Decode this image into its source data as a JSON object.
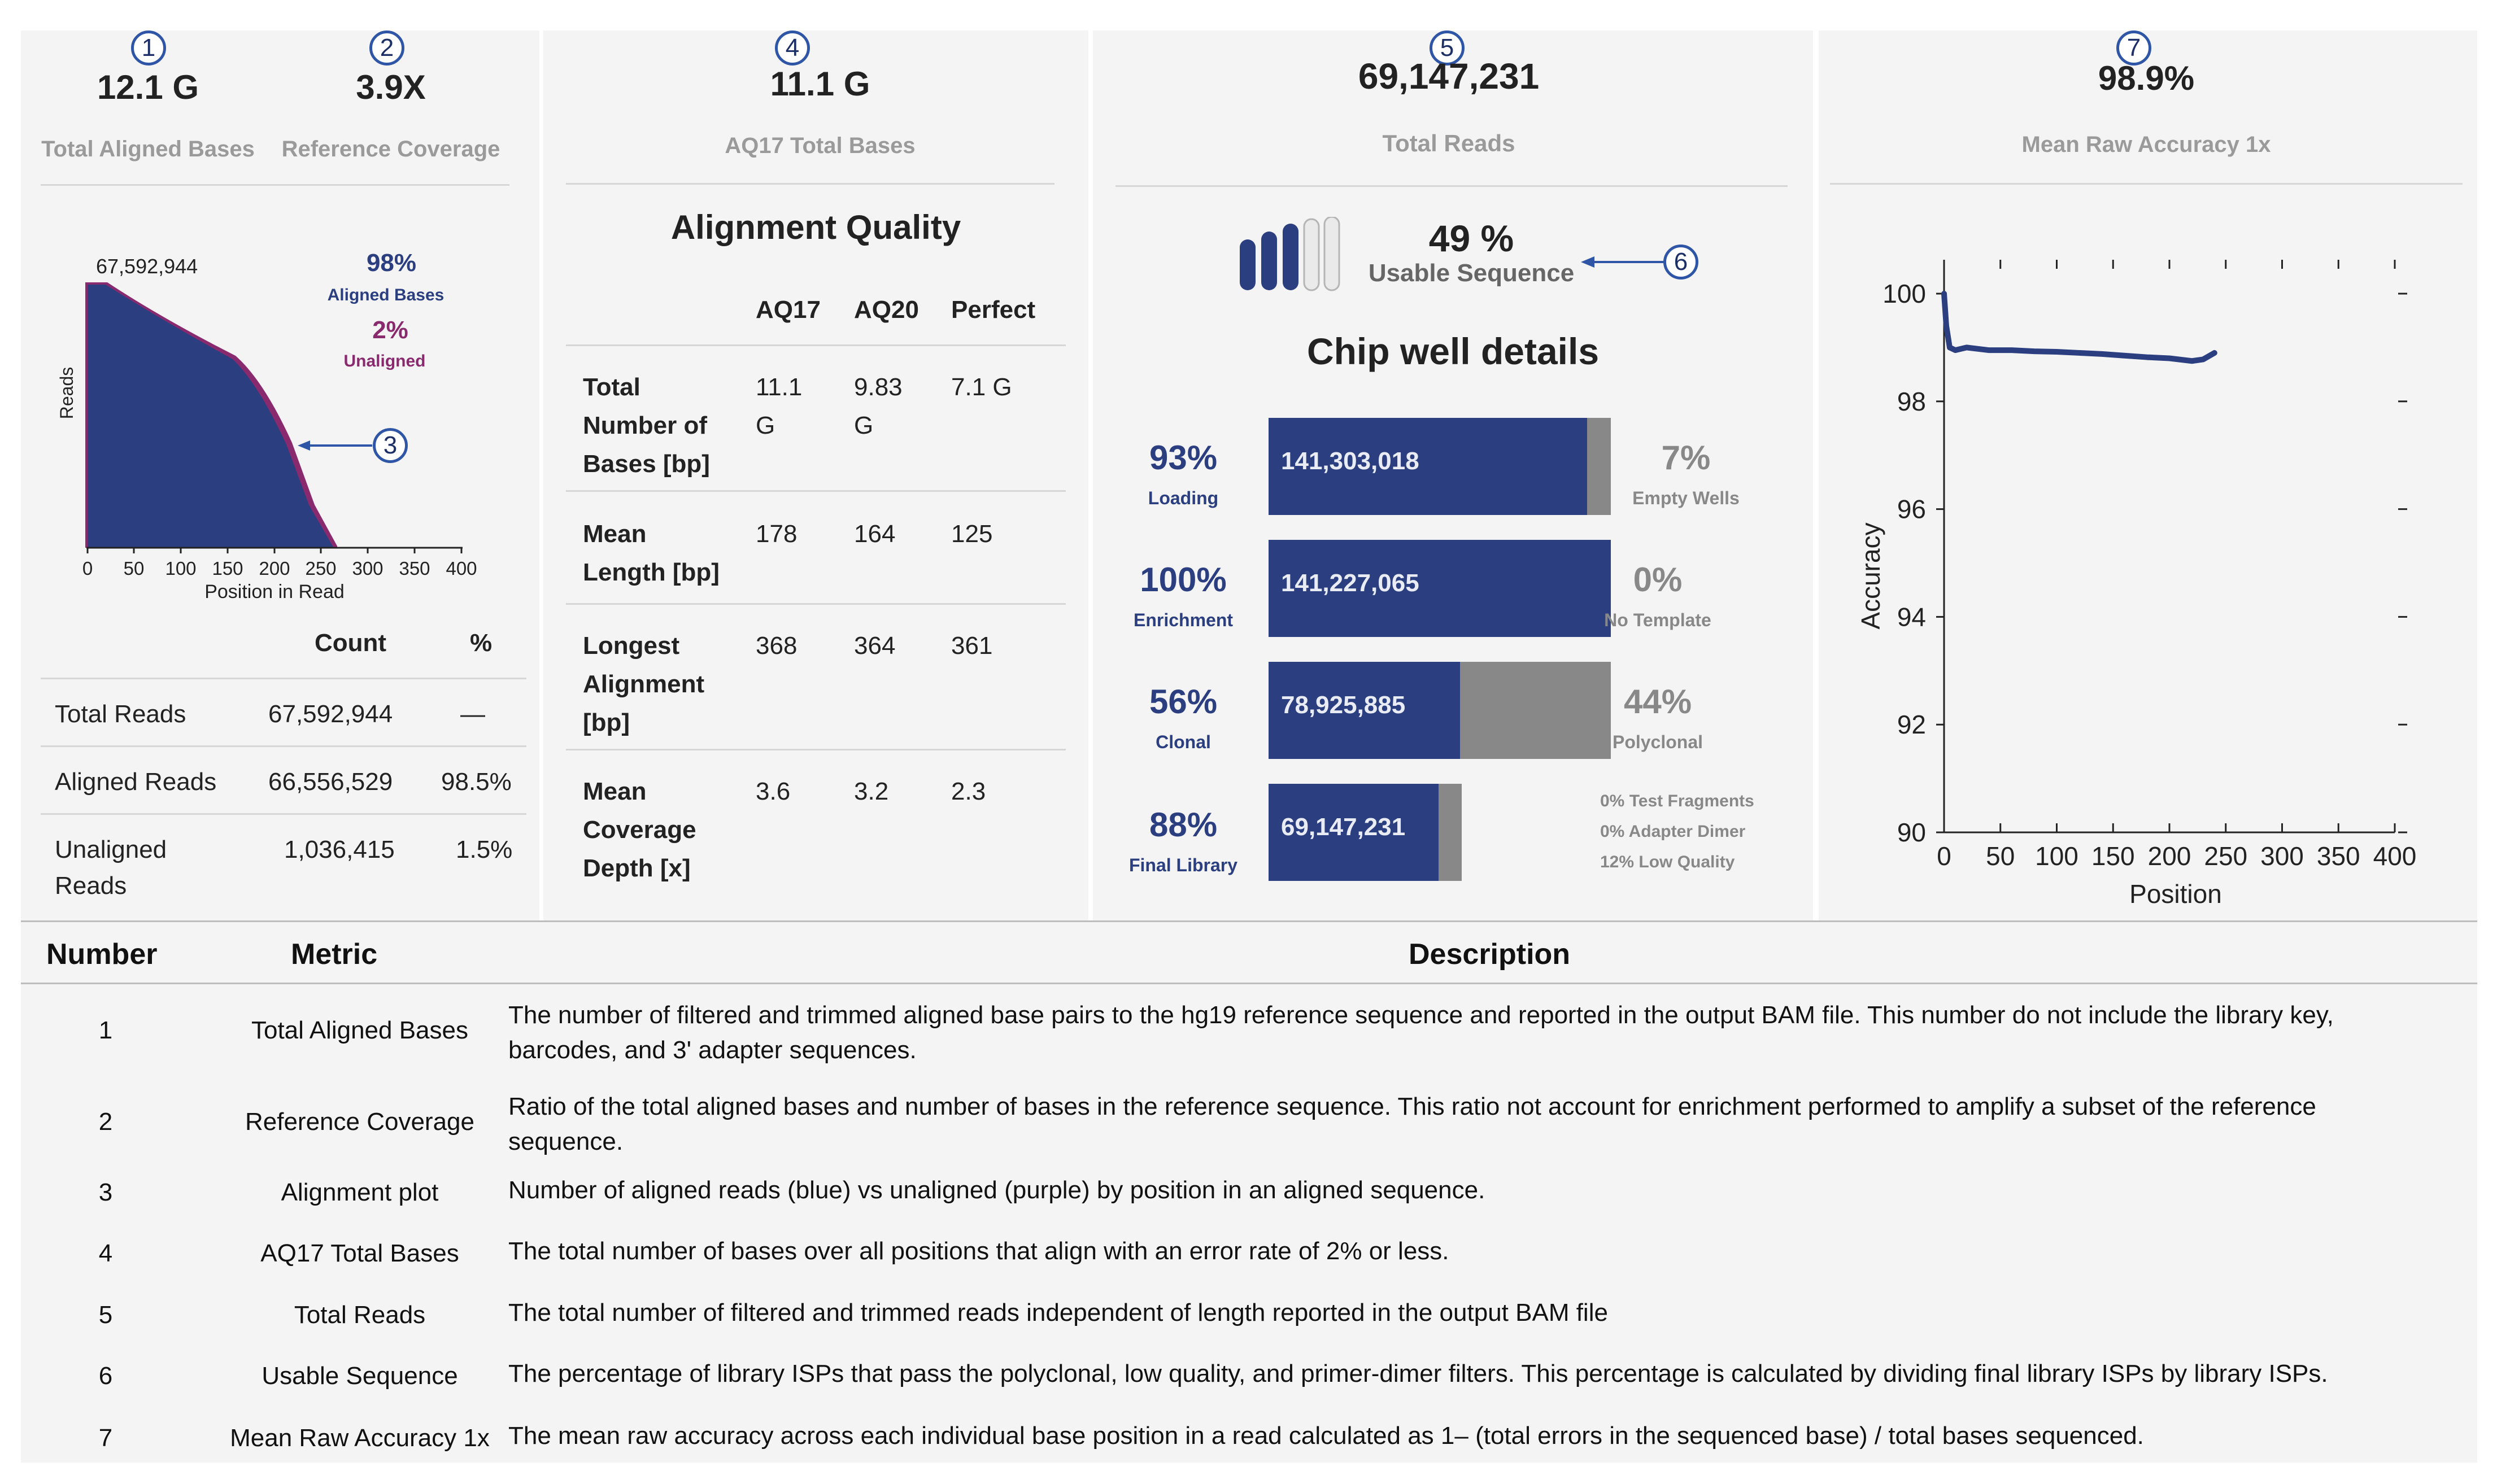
{
  "panel1": {
    "marker1": "1",
    "marker2": "2",
    "marker3": "3",
    "total_aligned_bases": "12.1 G",
    "total_aligned_bases_label": "Total Aligned Bases",
    "reference_coverage": "3.9X",
    "reference_coverage_label": "Reference Coverage",
    "plot": {
      "peak_label": "67,592,944",
      "aligned_pct": "98%",
      "aligned_label": "Aligned Bases",
      "unaligned_pct": "2%",
      "unaligned_label": "Unaligned",
      "ylabel": "Reads",
      "xlabel": "Position in Read",
      "xticks": [
        "0",
        "50",
        "100",
        "150",
        "200",
        "250",
        "300",
        "350",
        "400"
      ]
    },
    "table": {
      "headers": [
        "Count",
        "%"
      ],
      "rows": [
        {
          "label": "Total Reads",
          "count": "67,592,944",
          "pct": "—"
        },
        {
          "label": "Aligned Reads",
          "count": "66,556,529",
          "pct": "98.5%"
        },
        {
          "label_line1": "Unaligned",
          "label_line2": "Reads",
          "count": "1,036,415",
          "pct": "1.5%"
        }
      ]
    }
  },
  "panel2": {
    "marker": "4",
    "value": "11.1 G",
    "label": "AQ17 Total Bases",
    "title": "Alignment Quality",
    "headers": [
      "AQ17",
      "AQ20",
      "Perfect"
    ],
    "rows": [
      {
        "l1": "Total",
        "l2": "Number of",
        "l3": "Bases [bp]",
        "v1a": "11.1",
        "v1b": "G",
        "v2a": "9.83",
        "v2b": "G",
        "v3": "7.1 G"
      },
      {
        "l1": "Mean",
        "l2": "Length [bp]",
        "v1": "178",
        "v2": "164",
        "v3": "125"
      },
      {
        "l1": "Longest",
        "l2": "Alignment",
        "l3": "[bp]",
        "v1": "368",
        "v2": "364",
        "v3": "361"
      },
      {
        "l1": "Mean",
        "l2": "Coverage",
        "l3": "Depth [x]",
        "v1": "3.6",
        "v2": "3.2",
        "v3": "2.3"
      }
    ]
  },
  "panel3": {
    "marker5": "5",
    "marker6": "6",
    "total_reads": "69,147,231",
    "total_reads_label": "Total Reads",
    "usable_pct": "49 %",
    "usable_label": "Usable Sequence",
    "usable_level": 0.49,
    "chip_title": "Chip well details",
    "rows": [
      {
        "pct": "93%",
        "label": "Loading",
        "value": "141,303,018",
        "right_pct": "7%",
        "right_label": "Empty Wells",
        "fill": 0.93
      },
      {
        "pct": "100%",
        "label": "Enrichment",
        "value": "141,227,065",
        "right_pct": "0%",
        "right_label": "No Template",
        "fill": 1.0
      },
      {
        "pct": "56%",
        "label": "Clonal",
        "value": "78,925,885",
        "right_pct": "44%",
        "right_label": "Polyclonal",
        "fill": 0.56
      },
      {
        "pct": "88%",
        "label": "Final Library",
        "value": "69,147,231",
        "fill": 0.88
      }
    ],
    "notes": [
      "0% Test Fragments",
      "0% Adapter Dimer",
      "12% Low Quality"
    ]
  },
  "panel4": {
    "marker": "7",
    "value": "98.9%",
    "label": "Mean Raw Accuracy 1x",
    "chart_data": {
      "type": "line",
      "title": "",
      "xlabel": "Position",
      "ylabel": "Accuracy",
      "xlim": [
        0,
        400
      ],
      "ylim": [
        90,
        100
      ],
      "xticks": [
        "0",
        "50",
        "100",
        "150",
        "200",
        "250",
        "300",
        "350",
        "400"
      ],
      "yticks": [
        "100",
        "98",
        "96",
        "94",
        "92",
        "90"
      ],
      "x": [
        0,
        2,
        5,
        10,
        20,
        40,
        60,
        80,
        100,
        120,
        140,
        160,
        180,
        200,
        220,
        230,
        240
      ],
      "y": [
        100.0,
        99.4,
        99.0,
        98.95,
        99.0,
        98.95,
        98.95,
        98.93,
        98.92,
        98.9,
        98.88,
        98.85,
        98.82,
        98.8,
        98.75,
        98.78,
        98.9
      ]
    }
  },
  "description": {
    "headers": [
      "Number",
      "Metric",
      "Description"
    ],
    "rows": [
      {
        "num": "1",
        "metric": "Total Aligned Bases",
        "line1": "The number of filtered and trimmed aligned base pairs to the hg19 reference sequence and reported in the output BAM file. This number do not include the library key,",
        "line2": "barcodes, and 3' adapter sequences."
      },
      {
        "num": "2",
        "metric": "Reference Coverage",
        "line1": "Ratio of the total aligned bases and number of bases in the reference sequence. This ratio not account for enrichment performed to amplify a subset of the reference",
        "line2": "sequence."
      },
      {
        "num": "3",
        "metric": "Alignment plot",
        "line1": "Number of aligned reads (blue) vs unaligned (purple) by position in an aligned sequence."
      },
      {
        "num": "4",
        "metric": "AQ17 Total Bases",
        "line1": "The total number of bases over all positions that align with an error rate of 2% or less."
      },
      {
        "num": "5",
        "metric": "Total Reads",
        "line1": "The total number of filtered and trimmed reads independent of length reported in the output BAM file"
      },
      {
        "num": "6",
        "metric": "Usable Sequence",
        "line1": "The percentage of library ISPs that pass the polyclonal, low quality, and primer-dimer filters. This percentage is calculated by dividing final library ISPs by library ISPs."
      },
      {
        "num": "7",
        "metric": "Mean Raw Accuracy 1x",
        "line1": "The mean raw accuracy across each individual base position in a read calculated as 1– (total errors in the sequenced base) / total bases sequenced."
      }
    ]
  },
  "colors": {
    "navy": "#2b3f80",
    "purple": "#8a2a6e",
    "gray": "#888888",
    "marker": "#2f56a6"
  }
}
